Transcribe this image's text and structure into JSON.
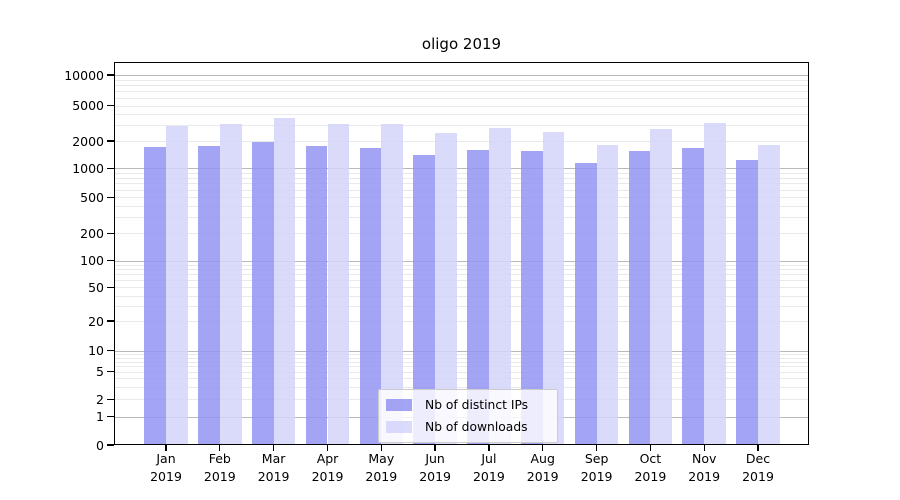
{
  "title": "oligo 2019",
  "chart_data": {
    "type": "bar",
    "title": "oligo 2019",
    "categories": [
      "Jan",
      "Feb",
      "Mar",
      "Apr",
      "May",
      "Jun",
      "Jul",
      "Aug",
      "Sep",
      "Oct",
      "Nov",
      "Dec"
    ],
    "x_tick_year": "2019",
    "series": [
      {
        "name": "Nb of distinct IPs",
        "color": "#9494f2",
        "opacity": 0.85,
        "values": [
          1700,
          1760,
          1950,
          1780,
          1690,
          1390,
          1580,
          1550,
          1150,
          1560,
          1680,
          1230
        ]
      },
      {
        "name": "Nb of downloads",
        "color": "#d3d3fa",
        "opacity": 0.85,
        "values": [
          2950,
          3150,
          3600,
          3150,
          3080,
          2460,
          2830,
          2500,
          1830,
          2700,
          3200,
          1800
        ]
      }
    ],
    "y_ticks": [
      10000,
      5000,
      2000,
      1000,
      500,
      200,
      100,
      50,
      20,
      10,
      5,
      2,
      1,
      0
    ],
    "y_axis_type": "log-like with 0 baseline",
    "ylim": [
      0,
      13000
    ],
    "xlabel": "",
    "ylabel": "",
    "grid": true,
    "gridline_major_color": "#b9b9b9",
    "gridline_minor_color": "#e9e9e9",
    "legend_position": "bottom-center inside plot"
  }
}
